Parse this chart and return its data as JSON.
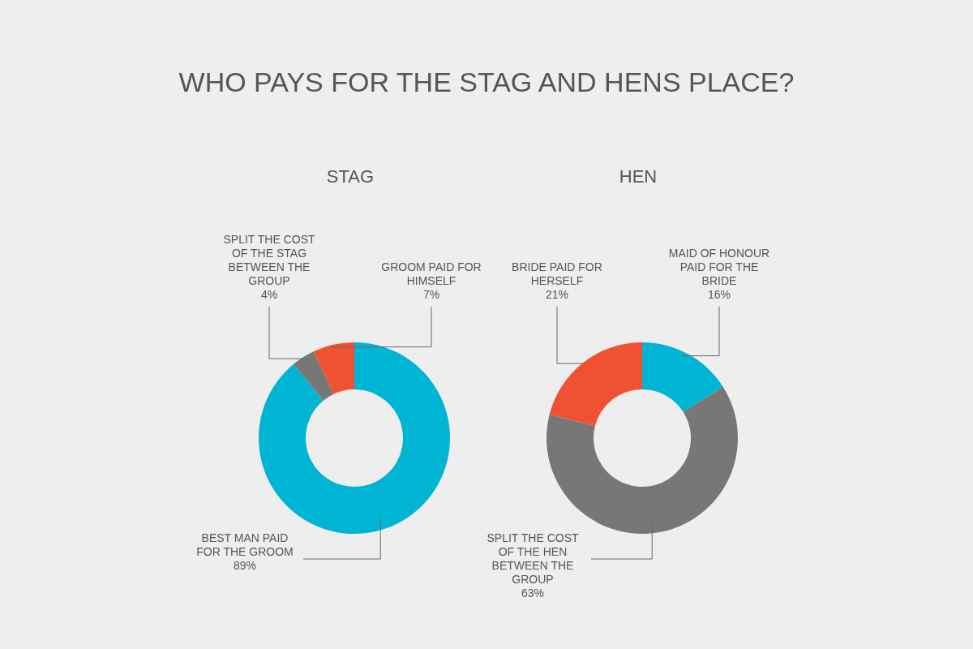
{
  "chart_data": [
    {
      "type": "donut",
      "title": "WHO PAYS FOR THE STAG AND HENS PLACE?",
      "subtitle": "STAG",
      "categories": [
        "BEST MAN PAID FOR THE GROOM",
        "SPLIT THE COST OF THE STAG BETWEEN THE GROUP",
        "GROOM PAID FOR HIMSELF"
      ],
      "values": [
        89,
        4,
        7
      ],
      "value_labels": [
        "89%",
        "4%",
        "7%"
      ],
      "colors": [
        "#00b5d3",
        "#777876",
        "#f05133"
      ],
      "legend": false
    },
    {
      "type": "donut",
      "subtitle": "HEN",
      "categories": [
        "MAID OF HONOUR PAID FOR THE BRIDE",
        "SPLIT THE COST OF THE HEN BETWEEN THE GROUP",
        "BRIDE PAID FOR HERSELF"
      ],
      "values": [
        16,
        63,
        21
      ],
      "value_labels": [
        "16%",
        "63%",
        "21%"
      ],
      "colors": [
        "#00b5d3",
        "#777876",
        "#f05133"
      ],
      "legend": false
    }
  ]
}
